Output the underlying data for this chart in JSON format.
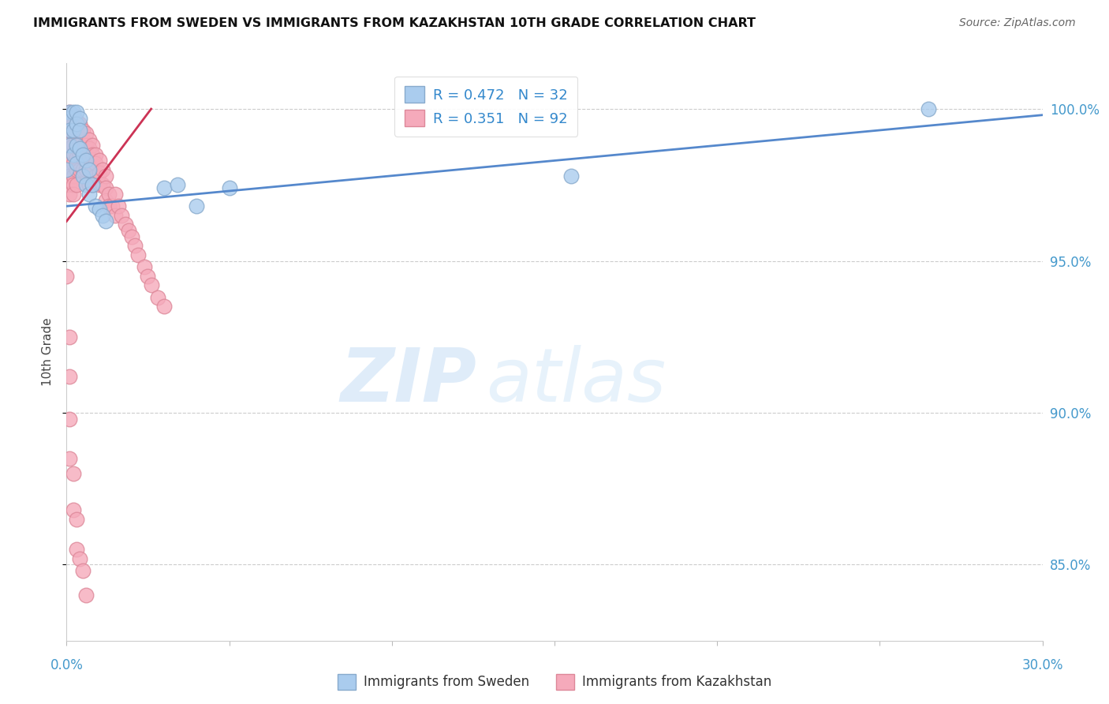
{
  "title": "IMMIGRANTS FROM SWEDEN VS IMMIGRANTS FROM KAZAKHSTAN 10TH GRADE CORRELATION CHART",
  "source": "Source: ZipAtlas.com",
  "ylabel": "10th Grade",
  "yaxis_labels": [
    "100.0%",
    "95.0%",
    "90.0%",
    "85.0%"
  ],
  "yaxis_values": [
    1.0,
    0.95,
    0.9,
    0.85
  ],
  "xlim": [
    0.0,
    0.3
  ],
  "ylim": [
    0.825,
    1.015
  ],
  "legend_blue_r": "0.472",
  "legend_blue_n": "32",
  "legend_pink_r": "0.351",
  "legend_pink_n": "92",
  "sweden_color": "#aaccee",
  "kazakhstan_color": "#f5aabb",
  "sweden_edge": "#88aacc",
  "kazakhstan_edge": "#dd8899",
  "trendline_blue": "#5588cc",
  "trendline_pink": "#cc3355",
  "watermark_zip": "ZIP",
  "watermark_atlas": "atlas",
  "sweden_label": "Immigrants from Sweden",
  "kazakhstan_label": "Immigrants from Kazakhstan",
  "sweden_points_x": [
    0.0,
    0.001,
    0.001,
    0.001,
    0.001,
    0.002,
    0.002,
    0.002,
    0.003,
    0.003,
    0.003,
    0.003,
    0.004,
    0.004,
    0.004,
    0.005,
    0.005,
    0.006,
    0.006,
    0.007,
    0.007,
    0.008,
    0.009,
    0.01,
    0.011,
    0.012,
    0.03,
    0.034,
    0.04,
    0.05,
    0.155,
    0.265
  ],
  "sweden_points_y": [
    0.98,
    0.999,
    0.997,
    0.993,
    0.988,
    0.999,
    0.993,
    0.985,
    0.999,
    0.995,
    0.988,
    0.982,
    0.997,
    0.993,
    0.987,
    0.985,
    0.978,
    0.983,
    0.975,
    0.98,
    0.972,
    0.975,
    0.968,
    0.967,
    0.965,
    0.963,
    0.974,
    0.975,
    0.968,
    0.974,
    0.978,
    1.0
  ],
  "kazakhstan_points_x": [
    0.0,
    0.0,
    0.0,
    0.001,
    0.001,
    0.001,
    0.001,
    0.001,
    0.001,
    0.001,
    0.001,
    0.001,
    0.001,
    0.002,
    0.002,
    0.002,
    0.002,
    0.002,
    0.002,
    0.002,
    0.002,
    0.002,
    0.003,
    0.003,
    0.003,
    0.003,
    0.003,
    0.003,
    0.003,
    0.004,
    0.004,
    0.004,
    0.004,
    0.004,
    0.005,
    0.005,
    0.005,
    0.005,
    0.005,
    0.006,
    0.006,
    0.006,
    0.006,
    0.007,
    0.007,
    0.007,
    0.007,
    0.007,
    0.008,
    0.008,
    0.008,
    0.008,
    0.009,
    0.009,
    0.009,
    0.01,
    0.01,
    0.01,
    0.011,
    0.011,
    0.012,
    0.012,
    0.012,
    0.013,
    0.013,
    0.014,
    0.015,
    0.015,
    0.016,
    0.017,
    0.018,
    0.019,
    0.02,
    0.021,
    0.022,
    0.024,
    0.025,
    0.026,
    0.028,
    0.03,
    0.0,
    0.001,
    0.001,
    0.001,
    0.001,
    0.002,
    0.002,
    0.003,
    0.003,
    0.004,
    0.005,
    0.006
  ],
  "kazakhstan_points_y": [
    0.997,
    0.993,
    0.988,
    0.999,
    0.997,
    0.993,
    0.99,
    0.987,
    0.984,
    0.98,
    0.978,
    0.975,
    0.972,
    0.998,
    0.995,
    0.992,
    0.988,
    0.985,
    0.982,
    0.978,
    0.975,
    0.972,
    0.996,
    0.993,
    0.99,
    0.987,
    0.984,
    0.98,
    0.975,
    0.995,
    0.992,
    0.988,
    0.985,
    0.98,
    0.993,
    0.99,
    0.987,
    0.984,
    0.98,
    0.992,
    0.988,
    0.985,
    0.98,
    0.99,
    0.987,
    0.984,
    0.98,
    0.975,
    0.988,
    0.985,
    0.98,
    0.975,
    0.985,
    0.982,
    0.978,
    0.983,
    0.979,
    0.975,
    0.98,
    0.975,
    0.978,
    0.974,
    0.97,
    0.972,
    0.968,
    0.968,
    0.972,
    0.965,
    0.968,
    0.965,
    0.962,
    0.96,
    0.958,
    0.955,
    0.952,
    0.948,
    0.945,
    0.942,
    0.938,
    0.935,
    0.945,
    0.925,
    0.912,
    0.898,
    0.885,
    0.88,
    0.868,
    0.865,
    0.855,
    0.852,
    0.848,
    0.84
  ]
}
